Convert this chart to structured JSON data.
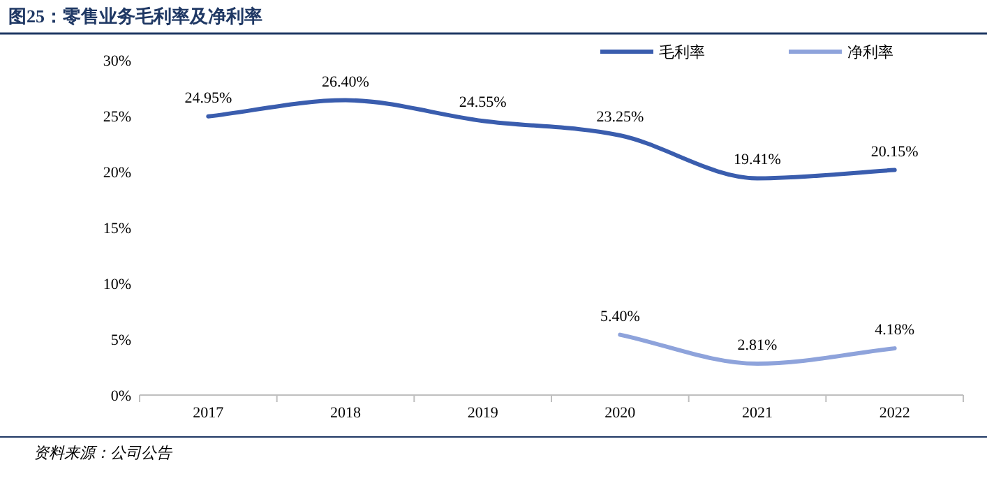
{
  "chart_data": {
    "type": "line",
    "title": "图25：零售业务毛利率及净利率",
    "categories": [
      "2017",
      "2018",
      "2019",
      "2020",
      "2021",
      "2022"
    ],
    "series": [
      {
        "name": "毛利率",
        "color": "#3a5dae",
        "values": [
          24.95,
          26.4,
          24.55,
          23.25,
          19.41,
          20.15
        ],
        "value_labels": [
          "24.95%",
          "26.40%",
          "24.55%",
          "23.25%",
          "19.41%",
          "20.15%"
        ]
      },
      {
        "name": "净利率",
        "color": "#8ea3db",
        "values": [
          null,
          null,
          null,
          5.4,
          2.81,
          4.18
        ],
        "value_labels": [
          null,
          null,
          null,
          "5.40%",
          "2.81%",
          "4.18%"
        ]
      }
    ],
    "ylim": [
      0,
      30
    ],
    "yticks": [
      {
        "value": 0,
        "label": "0%"
      },
      {
        "value": 5,
        "label": "5%"
      },
      {
        "value": 10,
        "label": "10%"
      },
      {
        "value": 15,
        "label": "15%"
      },
      {
        "value": 20,
        "label": "20%"
      },
      {
        "value": 25,
        "label": "25%"
      },
      {
        "value": 30,
        "label": "30%"
      }
    ],
    "grid": false,
    "legend": "top right",
    "marker": "none",
    "line_style": "solid",
    "annotations": [
      "资料来源：公司公告"
    ]
  }
}
